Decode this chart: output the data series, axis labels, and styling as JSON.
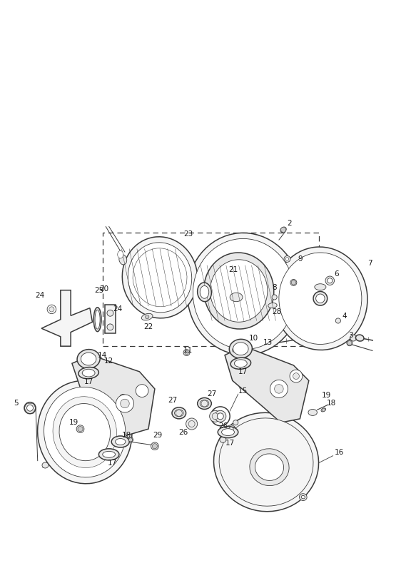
{
  "bg_color": "#ffffff",
  "lc": "#3a3a3a",
  "lc_light": "#888888",
  "fig_width": 5.83,
  "fig_height": 8.24,
  "dpi": 100
}
